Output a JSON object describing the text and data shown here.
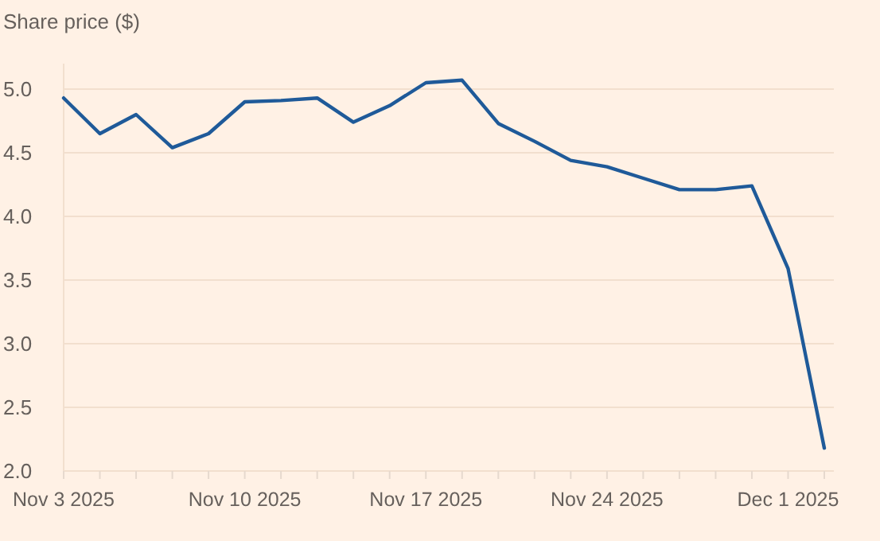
{
  "chart_data": {
    "type": "line",
    "title": "Share price ($)",
    "categories": [
      "Nov 3 2025",
      null,
      null,
      null,
      null,
      "Nov 10 2025",
      null,
      null,
      null,
      null,
      "Nov 17 2025",
      null,
      null,
      null,
      null,
      "Nov 24 2025",
      null,
      null,
      null,
      null,
      "Dec 1 2025",
      null
    ],
    "series": [
      {
        "color": "#1f5a99",
        "values": [
          4.93,
          4.65,
          4.8,
          4.54,
          4.65,
          4.9,
          4.91,
          4.93,
          4.74,
          4.87,
          5.05,
          5.07,
          4.73,
          4.59,
          4.44,
          4.39,
          4.3,
          4.21,
          4.21,
          4.24,
          3.59,
          2.18
        ]
      }
    ],
    "ylim": [
      2,
      5.2
    ],
    "yticks": [
      {
        "value": 2,
        "label": "2.0"
      },
      {
        "value": 2.5,
        "label": "2.5"
      },
      {
        "value": 3,
        "label": "3.0"
      },
      {
        "value": 3.5,
        "label": "3.5"
      },
      {
        "value": 4,
        "label": "4.0"
      },
      {
        "value": 4.5,
        "label": "4.5"
      },
      {
        "value": 5,
        "label": "5.0"
      }
    ],
    "grid": "y",
    "marker": "none",
    "line_style": "solid"
  }
}
